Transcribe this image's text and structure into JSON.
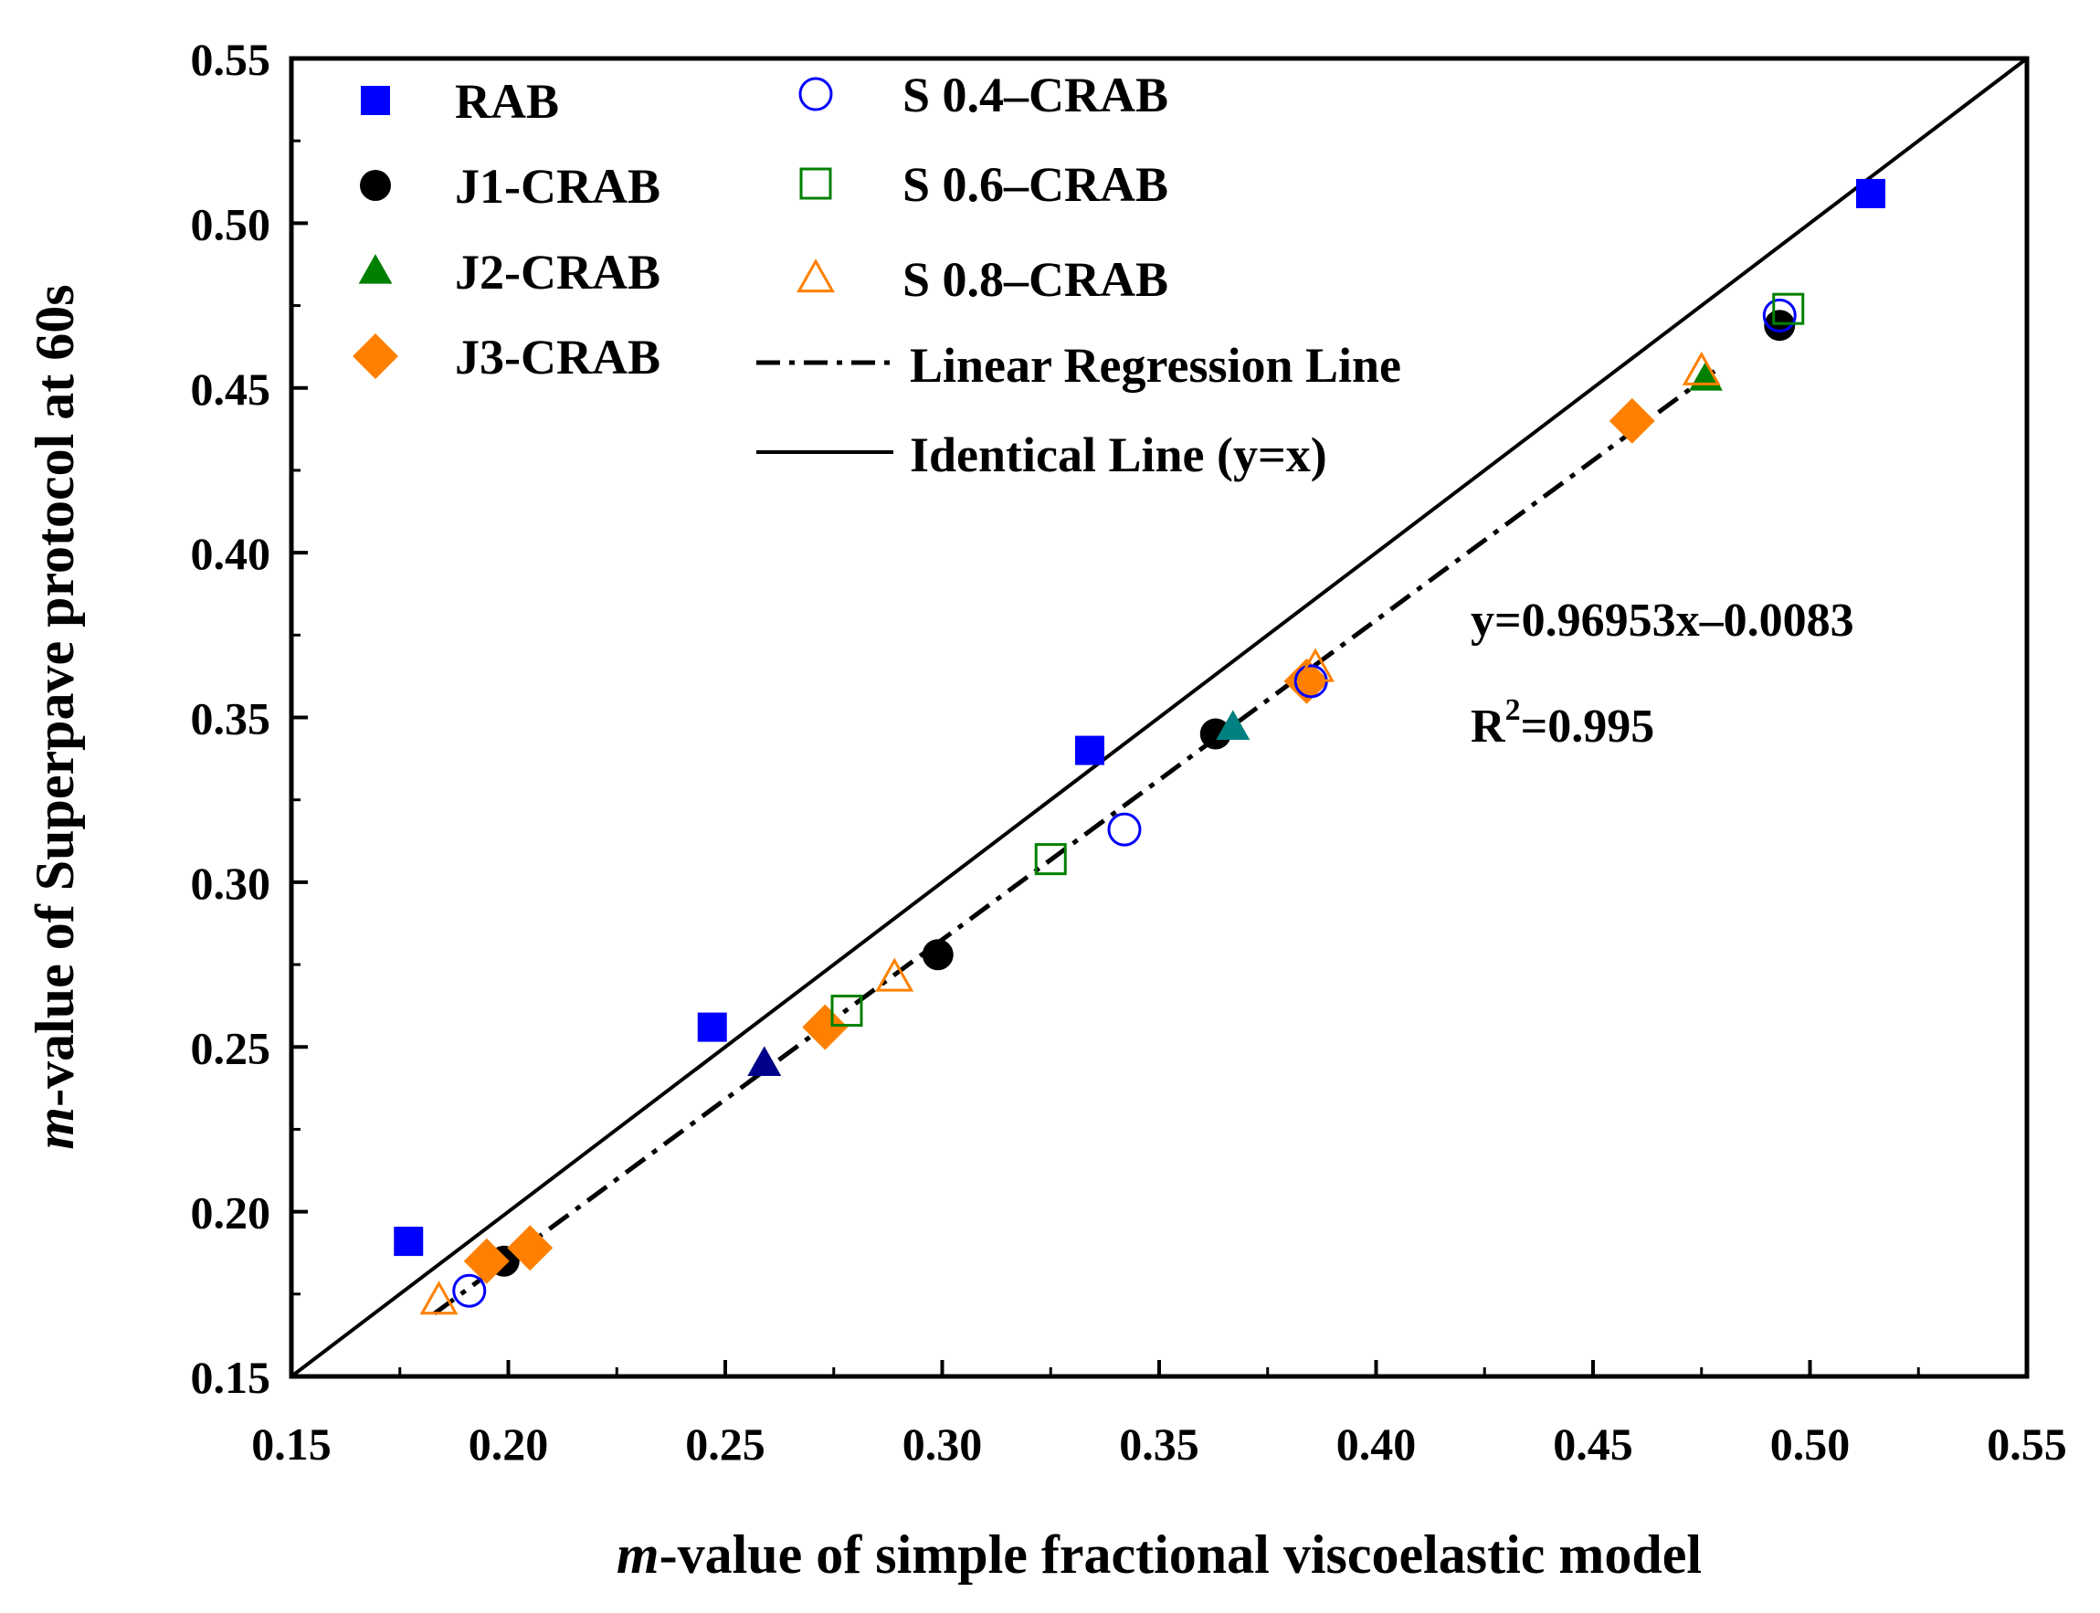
{
  "chart_data": {
    "type": "scatter",
    "xlabel_italic": "m",
    "xlabel_rest": "-value of simple fractional viscoelastic model",
    "ylabel_italic": "m",
    "ylabel_rest": "-value of Superpave protocol at 60s",
    "xlim": [
      0.15,
      0.55
    ],
    "ylim": [
      0.15,
      0.55
    ],
    "xticks": [
      "0.15",
      "0.20",
      "0.25",
      "0.30",
      "0.35",
      "0.40",
      "0.45",
      "0.50",
      "0.55"
    ],
    "yticks": [
      "0.15",
      "0.20",
      "0.25",
      "0.30",
      "0.35",
      "0.40",
      "0.45",
      "0.50",
      "0.55"
    ],
    "series": [
      {
        "name": "RAB",
        "marker": "square-filled",
        "color": "#0000FF",
        "points": [
          [
            0.177,
            0.191
          ],
          [
            0.247,
            0.256
          ],
          [
            0.334,
            0.34
          ],
          [
            0.514,
            0.509
          ]
        ]
      },
      {
        "name": "J1-CRAB",
        "marker": "circle-filled",
        "color": "#000000",
        "points": [
          [
            0.199,
            0.185
          ],
          [
            0.299,
            0.278
          ],
          [
            0.363,
            0.345
          ],
          [
            0.493,
            0.469
          ]
        ]
      },
      {
        "name": "J2-CRAB",
        "marker": "triangle-filled",
        "color": "#008000",
        "points": [
          [
            0.259,
            0.245
          ],
          [
            0.367,
            0.347
          ],
          [
            0.476,
            0.453
          ]
        ]
      },
      {
        "name": "J3-CRAB",
        "marker": "diamond-filled",
        "color": "#FF8000",
        "points": [
          [
            0.195,
            0.185
          ],
          [
            0.205,
            0.189
          ],
          [
            0.273,
            0.256
          ],
          [
            0.384,
            0.361
          ],
          [
            0.459,
            0.44
          ]
        ]
      },
      {
        "name": "S 0.4–CRAB",
        "marker": "circle-open",
        "color": "#0000FF",
        "points": [
          [
            0.191,
            0.176
          ],
          [
            0.342,
            0.316
          ],
          [
            0.385,
            0.361
          ],
          [
            0.493,
            0.472
          ]
        ]
      },
      {
        "name": "S 0.6–CRAB",
        "marker": "square-open",
        "color": "#008000",
        "points": [
          [
            0.278,
            0.261
          ],
          [
            0.325,
            0.307
          ],
          [
            0.495,
            0.474
          ]
        ]
      },
      {
        "name": "S 0.8–CRAB",
        "marker": "triangle-open",
        "color": "#FF8000",
        "points": [
          [
            0.184,
            0.173
          ],
          [
            0.289,
            0.271
          ],
          [
            0.386,
            0.365
          ],
          [
            0.475,
            0.455
          ]
        ]
      }
    ],
    "extra_markers": [
      {
        "marker": "triangle-filled",
        "color": "#00008B",
        "point": [
          0.259,
          0.245
        ]
      },
      {
        "marker": "triangle-filled",
        "color": "#008080",
        "point": [
          0.367,
          0.347
        ]
      }
    ],
    "regression_line": {
      "label": "Linear Regression Line",
      "style": "dash-dot",
      "slope": 0.96953,
      "intercept": -0.0083,
      "x_range": [
        0.183,
        0.478
      ]
    },
    "identity_line": {
      "label": "Identical Line (y=x)",
      "style": "solid",
      "x_range": [
        0.15,
        0.55
      ]
    },
    "equation_text": "y=0.96953x–0.0083",
    "r2_base": "R",
    "r2_sup": "2",
    "r2_value": "=0.995",
    "legend_position": "top-left"
  }
}
